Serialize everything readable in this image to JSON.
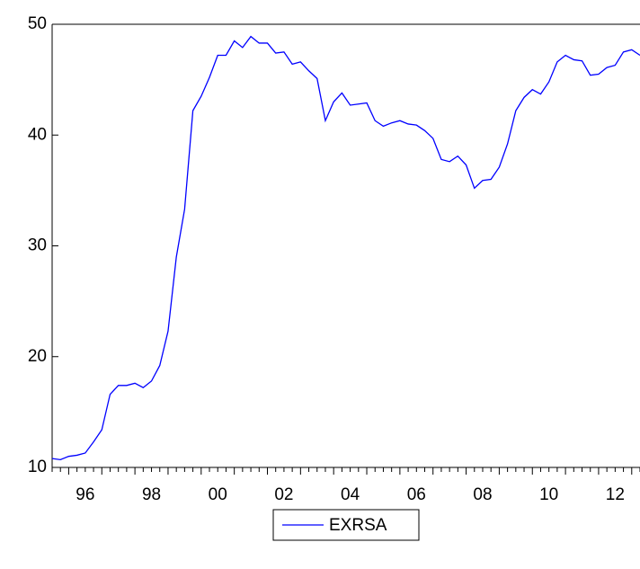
{
  "chart_data": {
    "type": "line",
    "x": [
      1995.5,
      1995.75,
      1996,
      1996.25,
      1996.5,
      1996.75,
      1997,
      1997.25,
      1997.5,
      1997.75,
      1998,
      1998.25,
      1998.5,
      1998.75,
      1999,
      1999.25,
      1999.5,
      1999.75,
      2000,
      2000.25,
      2000.5,
      2000.75,
      2001,
      2001.25,
      2001.5,
      2001.75,
      2002,
      2002.25,
      2002.5,
      2002.75,
      2003,
      2003.25,
      2003.5,
      2003.75,
      2004,
      2004.25,
      2004.5,
      2004.75,
      2005,
      2005.25,
      2005.5,
      2005.75,
      2006,
      2006.25,
      2006.5,
      2006.75,
      2007,
      2007.25,
      2007.5,
      2007.75,
      2008,
      2008.25,
      2008.5,
      2008.75,
      2009,
      2009.25,
      2009.5,
      2009.75,
      2010,
      2010.25,
      2010.5,
      2010.75,
      2011,
      2011.25,
      2011.5,
      2011.75,
      2012,
      2012.25,
      2012.5,
      2012.75,
      2013,
      2013.25
    ],
    "series": [
      {
        "name": "EXRSA",
        "color": "#0000ff",
        "values": [
          10.8,
          10.7,
          11.0,
          11.1,
          11.3,
          12.3,
          13.4,
          16.6,
          17.4,
          17.4,
          17.6,
          17.2,
          17.8,
          19.2,
          22.3,
          29.0,
          33.3,
          42.2,
          43.5,
          45.2,
          47.2,
          47.2,
          48.5,
          47.9,
          48.9,
          48.3,
          48.3,
          47.4,
          47.5,
          46.4,
          46.6,
          45.8,
          45.1,
          41.3,
          43.0,
          43.8,
          42.7,
          42.8,
          42.9,
          41.3,
          40.8,
          41.1,
          41.3,
          41.0,
          40.9,
          40.4,
          39.7,
          37.8,
          37.6,
          38.1,
          37.3,
          35.2,
          35.9,
          36.0,
          37.1,
          39.2,
          42.2,
          43.4,
          44.1,
          43.7,
          44.8,
          46.6,
          47.2,
          46.8,
          46.7,
          45.4,
          45.5,
          46.1,
          46.3,
          47.5,
          47.7,
          47.2
        ]
      }
    ],
    "xlim": [
      1995.5,
      2013.25
    ],
    "xticks": [
      {
        "value": 1996.5,
        "label": "96"
      },
      {
        "value": 1998.5,
        "label": "98"
      },
      {
        "value": 2000.5,
        "label": "00"
      },
      {
        "value": 2002.5,
        "label": "02"
      },
      {
        "value": 2004.5,
        "label": "04"
      },
      {
        "value": 2006.5,
        "label": "06"
      },
      {
        "value": 2008.5,
        "label": "08"
      },
      {
        "value": 2010.5,
        "label": "10"
      },
      {
        "value": 2012.5,
        "label": "12"
      }
    ],
    "ylim": [
      10,
      50
    ],
    "yticks": [
      10,
      20,
      30,
      40,
      50
    ],
    "grid": false,
    "legend": "bottom"
  }
}
